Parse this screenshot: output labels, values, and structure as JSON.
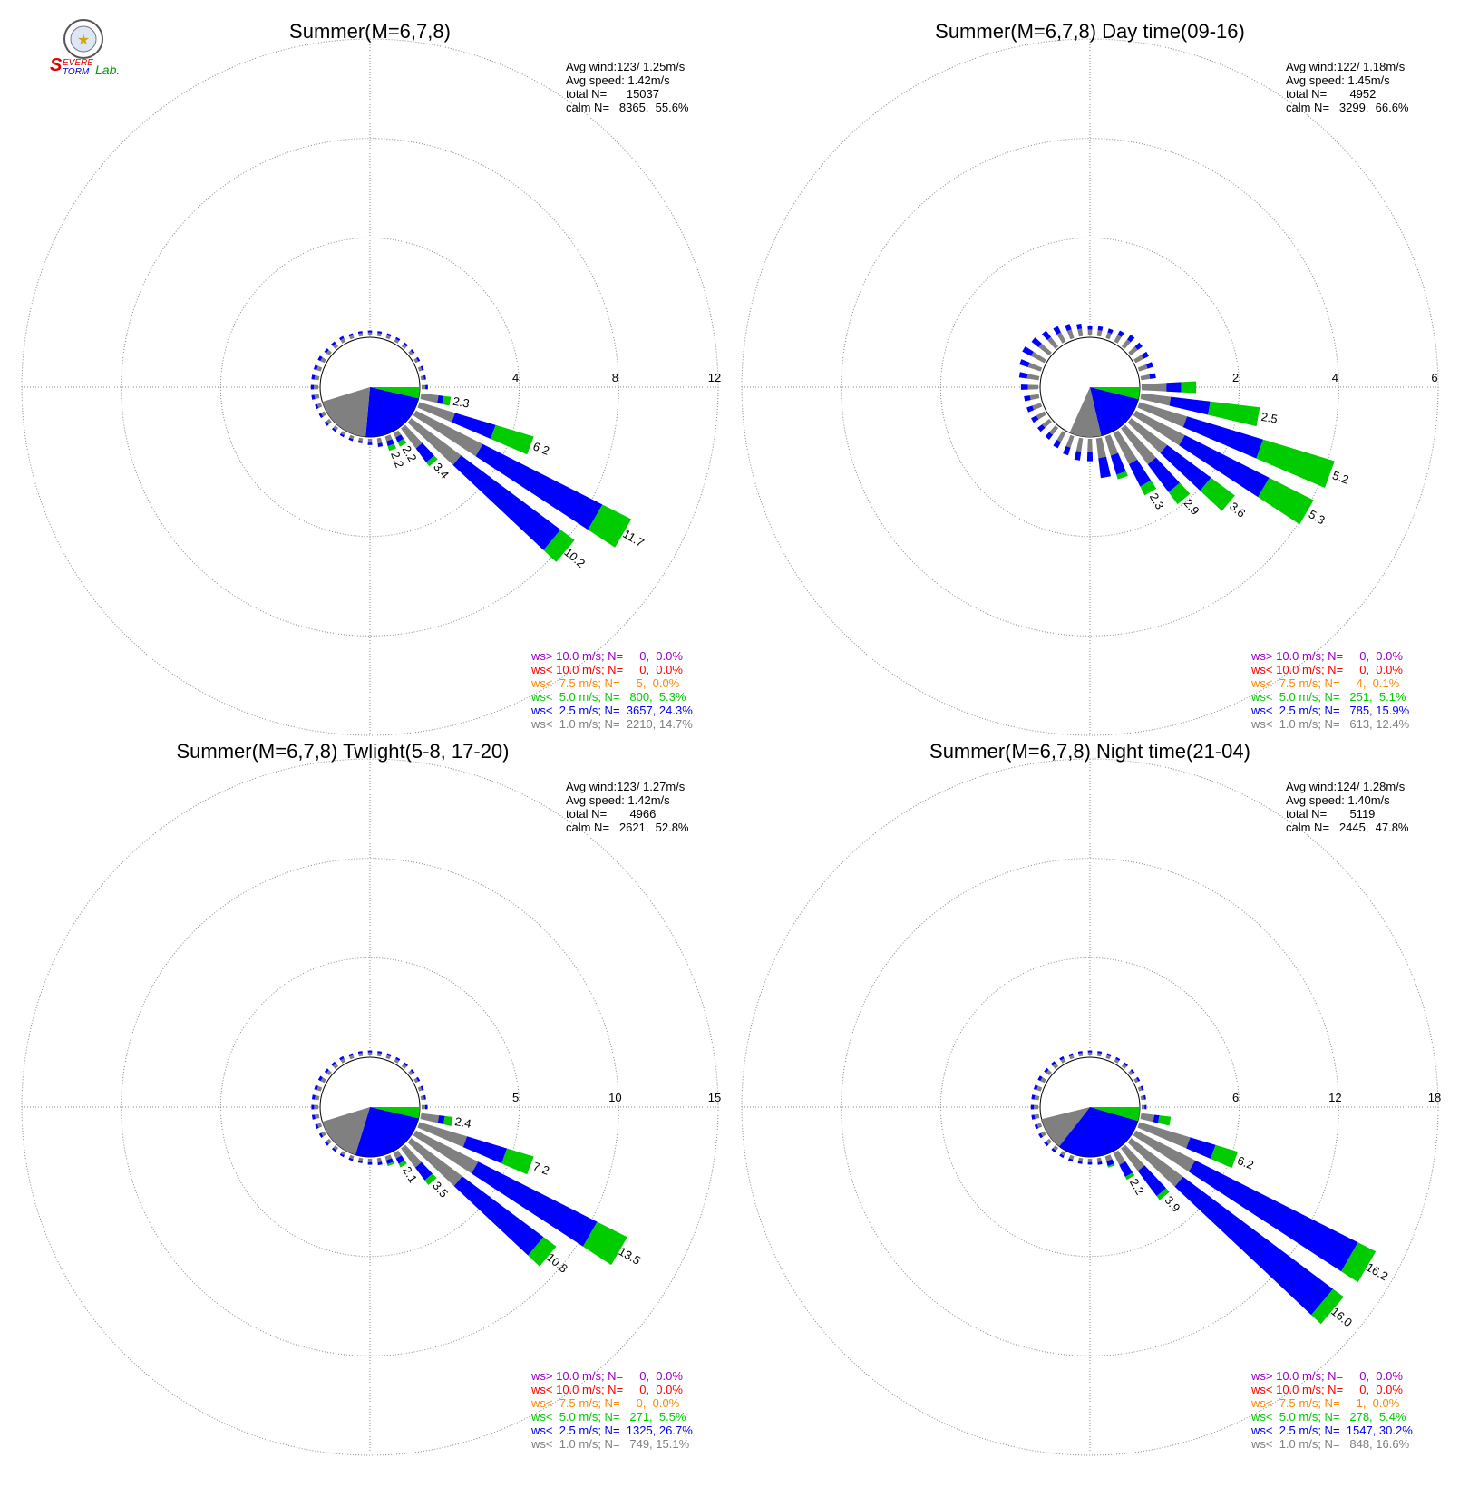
{
  "logo": {
    "part1": "S",
    "part2": "EVERE",
    "part3": "TORM",
    "part4": "Lab."
  },
  "colors": {
    "gt10": "#9900cc",
    "lt10": "#ff0000",
    "lt7_5": "#ff8800",
    "lt5": "#00cc00",
    "lt2_5": "#0000ff",
    "lt1": "#808080",
    "grid": "#888888"
  },
  "chart_data": [
    {
      "type": "windrose",
      "title": "Summer(M=6,7,8)",
      "stats": {
        "avg_wind": "Avg wind:123/ 1.25m/s",
        "avg_speed": "Avg speed: 1.42m/s",
        "total": "total N=      15037",
        "calm": "calm N=   8365,  55.6%"
      },
      "rmax": 12,
      "rings": [
        4,
        8,
        12
      ],
      "ring_labels": [
        "4",
        "8",
        "12"
      ],
      "calm_wedges": [
        {
          "from": 90,
          "to": 103,
          "band": "lt5"
        },
        {
          "from": 103,
          "to": 185,
          "band": "lt2_5"
        },
        {
          "from": 185,
          "to": 253,
          "band": "lt1"
        }
      ],
      "spokes": [
        {
          "dir": 100,
          "segs": [
            0.7,
            0.2,
            0.3
          ],
          "label": "2.3"
        },
        {
          "dir": 110,
          "segs": [
            1.5,
            1.7,
            1.6
          ],
          "label": "6.2"
        },
        {
          "dir": 120,
          "segs": [
            3.0,
            5.4,
            1.3
          ],
          "label": "11.7"
        },
        {
          "dir": 130,
          "segs": [
            2.5,
            5.0,
            0.7
          ],
          "label": "10.2"
        },
        {
          "dir": 140,
          "segs": [
            1.0,
            0.7,
            0.2
          ],
          "label": "3.4"
        },
        {
          "dir": 150,
          "segs": [
            0.2,
            0.2,
            0.2
          ],
          "label": "2.2"
        },
        {
          "dir": 160,
          "segs": [
            0.2,
            0.2,
            0.2
          ],
          "label": "2.2"
        }
      ],
      "small_bars": [
        {
          "dir": 90,
          "len": 0.25
        },
        {
          "dir": 170,
          "len": 0.35
        },
        {
          "dir": 180,
          "len": 0.25
        },
        {
          "dir": 190,
          "len": 0.2
        },
        {
          "dir": 200,
          "len": 0.2
        },
        {
          "dir": 210,
          "len": 0.2
        },
        {
          "dir": 220,
          "len": 0.2
        },
        {
          "dir": 230,
          "len": 0.25
        },
        {
          "dir": 240,
          "len": 0.25
        },
        {
          "dir": 250,
          "len": 0.25
        },
        {
          "dir": 260,
          "len": 0.3
        },
        {
          "dir": 270,
          "len": 0.3
        },
        {
          "dir": 280,
          "len": 0.3
        },
        {
          "dir": 290,
          "len": 0.3
        },
        {
          "dir": 300,
          "len": 0.3
        },
        {
          "dir": 310,
          "len": 0.25
        },
        {
          "dir": 320,
          "len": 0.25
        },
        {
          "dir": 330,
          "len": 0.25
        },
        {
          "dir": 340,
          "len": 0.2
        },
        {
          "dir": 350,
          "len": 0.2
        },
        {
          "dir": 0,
          "len": 0.2
        },
        {
          "dir": 10,
          "len": 0.2
        },
        {
          "dir": 20,
          "len": 0.2
        },
        {
          "dir": 30,
          "len": 0.2
        },
        {
          "dir": 40,
          "len": 0.2
        },
        {
          "dir": 50,
          "len": 0.2
        },
        {
          "dir": 60,
          "len": 0.2
        },
        {
          "dir": 70,
          "len": 0.2
        },
        {
          "dir": 80,
          "len": 0.2
        }
      ],
      "legend": [
        {
          "band": "gt10",
          "text": "ws> 10.0 m/s; N=     0,  0.0%"
        },
        {
          "band": "lt10",
          "text": "ws< 10.0 m/s; N=     0,  0.0%"
        },
        {
          "band": "lt7_5",
          "text": "ws<  7.5 m/s; N=     5,  0.0%"
        },
        {
          "band": "lt5",
          "text": "ws<  5.0 m/s; N=   800,  5.3%"
        },
        {
          "band": "lt2_5",
          "text": "ws<  2.5 m/s; N=  3657, 24.3%"
        },
        {
          "band": "lt1",
          "text": "ws<  1.0 m/s; N=  2210, 14.7%"
        }
      ]
    },
    {
      "type": "windrose",
      "title": "Summer(M=6,7,8) Day time(09-16)",
      "stats": {
        "avg_wind": "Avg wind:122/ 1.18m/s",
        "avg_speed": "Avg speed: 1.45m/s",
        "total": "total N=       4952",
        "calm": "calm N=   3299,  66.6%"
      },
      "rmax": 6,
      "rings": [
        2,
        4,
        6
      ],
      "ring_labels": [
        "2",
        "4",
        "6"
      ],
      "calm_wedges": [
        {
          "from": 90,
          "to": 104,
          "band": "lt5"
        },
        {
          "from": 104,
          "to": 167,
          "band": "lt2_5"
        },
        {
          "from": 167,
          "to": 204,
          "band": "lt1"
        }
      ],
      "spokes": [
        {
          "dir": 90,
          "segs": [
            0.5,
            0.3,
            0.3
          ],
          "label": ""
        },
        {
          "dir": 100,
          "segs": [
            0.6,
            0.8,
            1.0
          ],
          "label": "2.5"
        },
        {
          "dir": 110,
          "segs": [
            1.0,
            1.6,
            1.5
          ],
          "label": "5.2"
        },
        {
          "dir": 120,
          "segs": [
            1.1,
            1.9,
            1.0
          ],
          "label": "5.3"
        },
        {
          "dir": 130,
          "segs": [
            0.9,
            1.1,
            0.6
          ],
          "label": "3.6"
        },
        {
          "dir": 140,
          "segs": [
            0.9,
            0.7,
            0.3
          ],
          "label": "2.9"
        },
        {
          "dir": 150,
          "segs": [
            0.7,
            0.5,
            0.2
          ],
          "label": "2.3"
        },
        {
          "dir": 160,
          "segs": [
            0.4,
            0.4,
            0.1
          ],
          "label": ""
        },
        {
          "dir": 170,
          "segs": [
            0.4,
            0.4,
            0.0
          ],
          "label": ""
        }
      ],
      "small_bars": [
        {
          "dir": 180,
          "len": 0.45
        },
        {
          "dir": 190,
          "len": 0.45
        },
        {
          "dir": 200,
          "len": 0.4
        },
        {
          "dir": 210,
          "len": 0.35
        },
        {
          "dir": 220,
          "len": 0.3
        },
        {
          "dir": 230,
          "len": 0.3
        },
        {
          "dir": 240,
          "len": 0.3
        },
        {
          "dir": 250,
          "len": 0.3
        },
        {
          "dir": 260,
          "len": 0.3
        },
        {
          "dir": 270,
          "len": 0.35
        },
        {
          "dir": 280,
          "len": 0.4
        },
        {
          "dir": 290,
          "len": 0.45
        },
        {
          "dir": 300,
          "len": 0.5
        },
        {
          "dir": 310,
          "len": 0.45
        },
        {
          "dir": 320,
          "len": 0.4
        },
        {
          "dir": 330,
          "len": 0.35
        },
        {
          "dir": 340,
          "len": 0.3
        },
        {
          "dir": 350,
          "len": 0.25
        },
        {
          "dir": 0,
          "len": 0.2
        },
        {
          "dir": 10,
          "len": 0.2
        },
        {
          "dir": 20,
          "len": 0.2
        },
        {
          "dir": 30,
          "len": 0.25
        },
        {
          "dir": 40,
          "len": 0.3
        },
        {
          "dir": 50,
          "len": 0.3
        },
        {
          "dir": 60,
          "len": 0.3
        },
        {
          "dir": 70,
          "len": 0.3
        },
        {
          "dir": 80,
          "len": 0.3
        }
      ],
      "legend": [
        {
          "band": "gt10",
          "text": "ws> 10.0 m/s; N=     0,  0.0%"
        },
        {
          "band": "lt10",
          "text": "ws< 10.0 m/s; N=     0,  0.0%"
        },
        {
          "band": "lt7_5",
          "text": "ws<  7.5 m/s; N=     4,  0.1%"
        },
        {
          "band": "lt5",
          "text": "ws<  5.0 m/s; N=   251,  5.1%"
        },
        {
          "band": "lt2_5",
          "text": "ws<  2.5 m/s; N=   785, 15.9%"
        },
        {
          "band": "lt1",
          "text": "ws<  1.0 m/s; N=   613, 12.4%"
        }
      ]
    },
    {
      "type": "windrose",
      "title": "Summer(M=6,7,8) Twlight(5-8, 17-20)",
      "stats": {
        "avg_wind": "Avg wind:123/ 1.27m/s",
        "avg_speed": "Avg speed: 1.42m/s",
        "total": "total N=       4966",
        "calm": "calm N=   2621,  52.8%"
      },
      "rmax": 15,
      "rings": [
        5,
        10,
        15
      ],
      "ring_labels": [
        "5",
        "10",
        "15"
      ],
      "calm_wedges": [
        {
          "from": 90,
          "to": 103,
          "band": "lt5"
        },
        {
          "from": 103,
          "to": 197,
          "band": "lt2_5"
        },
        {
          "from": 197,
          "to": 253,
          "band": "lt1"
        }
      ],
      "spokes": [
        {
          "dir": 100,
          "segs": [
            0.9,
            0.3,
            0.4
          ],
          "label": "2.4"
        },
        {
          "dir": 110,
          "segs": [
            2.5,
            2.1,
            1.4
          ],
          "label": "7.2"
        },
        {
          "dir": 120,
          "segs": [
            3.5,
            6.7,
            1.7
          ],
          "label": "13.5"
        },
        {
          "dir": 130,
          "segs": [
            3.2,
            5.1,
            0.8
          ],
          "label": "10.8"
        },
        {
          "dir": 140,
          "segs": [
            1.2,
            0.8,
            0.3
          ],
          "label": "3.5"
        },
        {
          "dir": 150,
          "segs": [
            0.3,
            0.3,
            0.2
          ],
          "label": "2.1"
        },
        {
          "dir": 160,
          "segs": [
            0.2,
            0.2,
            0.1
          ],
          "label": ""
        }
      ],
      "small_bars": [
        {
          "dir": 90,
          "len": 0.3
        },
        {
          "dir": 170,
          "len": 0.35
        },
        {
          "dir": 180,
          "len": 0.3
        },
        {
          "dir": 190,
          "len": 0.25
        },
        {
          "dir": 200,
          "len": 0.25
        },
        {
          "dir": 210,
          "len": 0.25
        },
        {
          "dir": 220,
          "len": 0.25
        },
        {
          "dir": 230,
          "len": 0.3
        },
        {
          "dir": 240,
          "len": 0.3
        },
        {
          "dir": 250,
          "len": 0.3
        },
        {
          "dir": 260,
          "len": 0.35
        },
        {
          "dir": 270,
          "len": 0.35
        },
        {
          "dir": 280,
          "len": 0.35
        },
        {
          "dir": 290,
          "len": 0.35
        },
        {
          "dir": 300,
          "len": 0.35
        },
        {
          "dir": 310,
          "len": 0.3
        },
        {
          "dir": 320,
          "len": 0.3
        },
        {
          "dir": 330,
          "len": 0.3
        },
        {
          "dir": 340,
          "len": 0.25
        },
        {
          "dir": 350,
          "len": 0.25
        },
        {
          "dir": 0,
          "len": 0.25
        },
        {
          "dir": 10,
          "len": 0.25
        },
        {
          "dir": 20,
          "len": 0.25
        },
        {
          "dir": 30,
          "len": 0.25
        },
        {
          "dir": 40,
          "len": 0.25
        },
        {
          "dir": 50,
          "len": 0.25
        },
        {
          "dir": 60,
          "len": 0.25
        },
        {
          "dir": 70,
          "len": 0.25
        },
        {
          "dir": 80,
          "len": 0.25
        }
      ],
      "legend": [
        {
          "band": "gt10",
          "text": "ws> 10.0 m/s; N=     0,  0.0%"
        },
        {
          "band": "lt10",
          "text": "ws< 10.0 m/s; N=     0,  0.0%"
        },
        {
          "band": "lt7_5",
          "text": "ws<  7.5 m/s; N=     0,  0.0%"
        },
        {
          "band": "lt5",
          "text": "ws<  5.0 m/s; N=   271,  5.5%"
        },
        {
          "band": "lt2_5",
          "text": "ws<  2.5 m/s; N=  1325, 26.7%"
        },
        {
          "band": "lt1",
          "text": "ws<  1.0 m/s; N=   749, 15.1%"
        }
      ]
    },
    {
      "type": "windrose",
      "title": "Summer(M=6,7,8) Night time(21-04)",
      "stats": {
        "avg_wind": "Avg wind:124/ 1.28m/s",
        "avg_speed": "Avg speed: 1.40m/s",
        "total": "total N=       5119",
        "calm": "calm N=   2445,  47.8%"
      },
      "rmax": 18,
      "rings": [
        6,
        12,
        18
      ],
      "ring_labels": [
        "6",
        "12",
        "18"
      ],
      "calm_wedges": [
        {
          "from": 90,
          "to": 106,
          "band": "lt5"
        },
        {
          "from": 106,
          "to": 218,
          "band": "lt2_5"
        },
        {
          "from": 218,
          "to": 256,
          "band": "lt1"
        }
      ],
      "spokes": [
        {
          "dir": 100,
          "segs": [
            0.8,
            0.3,
            0.7
          ],
          "label": ""
        },
        {
          "dir": 110,
          "segs": [
            3.2,
            1.6,
            1.4
          ],
          "label": "6.2"
        },
        {
          "dir": 120,
          "segs": [
            4.0,
            11.0,
            1.2
          ],
          "label": "16.2"
        },
        {
          "dir": 130,
          "segs": [
            3.9,
            11.3,
            0.8
          ],
          "label": "16.0"
        },
        {
          "dir": 140,
          "segs": [
            1.7,
            1.9,
            0.3
          ],
          "label": "3.9"
        },
        {
          "dir": 150,
          "segs": [
            0.8,
            0.8,
            0.2
          ],
          "label": "2.2"
        },
        {
          "dir": 160,
          "segs": [
            0.3,
            0.3,
            0.1
          ],
          "label": ""
        }
      ],
      "small_bars": [
        {
          "dir": 90,
          "len": 0.3
        },
        {
          "dir": 170,
          "len": 0.4
        },
        {
          "dir": 180,
          "len": 0.35
        },
        {
          "dir": 190,
          "len": 0.35
        },
        {
          "dir": 200,
          "len": 0.35
        },
        {
          "dir": 210,
          "len": 0.35
        },
        {
          "dir": 220,
          "len": 0.35
        },
        {
          "dir": 230,
          "len": 0.4
        },
        {
          "dir": 240,
          "len": 0.4
        },
        {
          "dir": 250,
          "len": 0.4
        },
        {
          "dir": 260,
          "len": 0.45
        },
        {
          "dir": 270,
          "len": 0.45
        },
        {
          "dir": 280,
          "len": 0.45
        },
        {
          "dir": 290,
          "len": 0.45
        },
        {
          "dir": 300,
          "len": 0.45
        },
        {
          "dir": 310,
          "len": 0.4
        },
        {
          "dir": 320,
          "len": 0.4
        },
        {
          "dir": 330,
          "len": 0.35
        },
        {
          "dir": 340,
          "len": 0.3
        },
        {
          "dir": 350,
          "len": 0.3
        },
        {
          "dir": 0,
          "len": 0.3
        },
        {
          "dir": 10,
          "len": 0.3
        },
        {
          "dir": 20,
          "len": 0.3
        },
        {
          "dir": 30,
          "len": 0.3
        },
        {
          "dir": 40,
          "len": 0.3
        },
        {
          "dir": 50,
          "len": 0.3
        },
        {
          "dir": 60,
          "len": 0.3
        },
        {
          "dir": 70,
          "len": 0.3
        },
        {
          "dir": 80,
          "len": 0.3
        }
      ],
      "legend": [
        {
          "band": "gt10",
          "text": "ws> 10.0 m/s; N=     0,  0.0%"
        },
        {
          "band": "lt10",
          "text": "ws< 10.0 m/s; N=     0,  0.0%"
        },
        {
          "band": "lt7_5",
          "text": "ws<  7.5 m/s; N=     1,  0.0%"
        },
        {
          "band": "lt5",
          "text": "ws<  5.0 m/s; N=   278,  5.4%"
        },
        {
          "band": "lt2_5",
          "text": "ws<  2.5 m/s; N=  1547, 30.2%"
        },
        {
          "band": "lt1",
          "text": "ws<  1.0 m/s; N=   848, 16.6%"
        }
      ]
    }
  ]
}
